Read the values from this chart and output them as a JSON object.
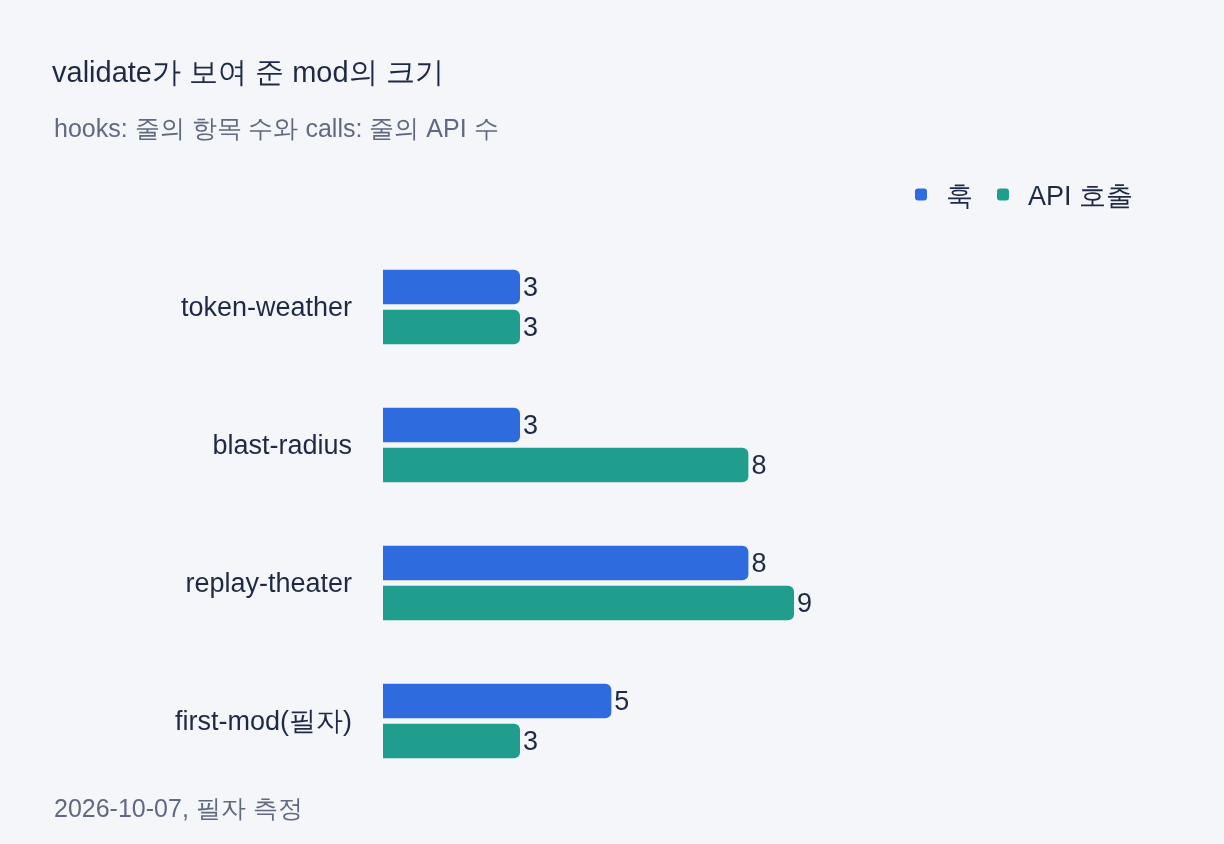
{
  "chart_data": {
    "type": "bar",
    "orientation": "horizontal",
    "title": "validate가 보여 준 mod의 크기",
    "subtitle": "hooks: 줄의 항목 수와 calls: 줄의 API 수",
    "categories": [
      "token-weather",
      "blast-radius",
      "replay-theater",
      "first-mod(필자)"
    ],
    "series": [
      {
        "name": "훅",
        "color": "#2e6bde",
        "values": [
          3,
          3,
          8,
          5
        ]
      },
      {
        "name": "API 호출",
        "color": "#1f9e8e",
        "values": [
          3,
          8,
          9,
          3
        ]
      }
    ],
    "data_labels": true,
    "legend": "top right",
    "grid": false,
    "annotations": [
      "2026-10-07, 필자 측정"
    ]
  }
}
